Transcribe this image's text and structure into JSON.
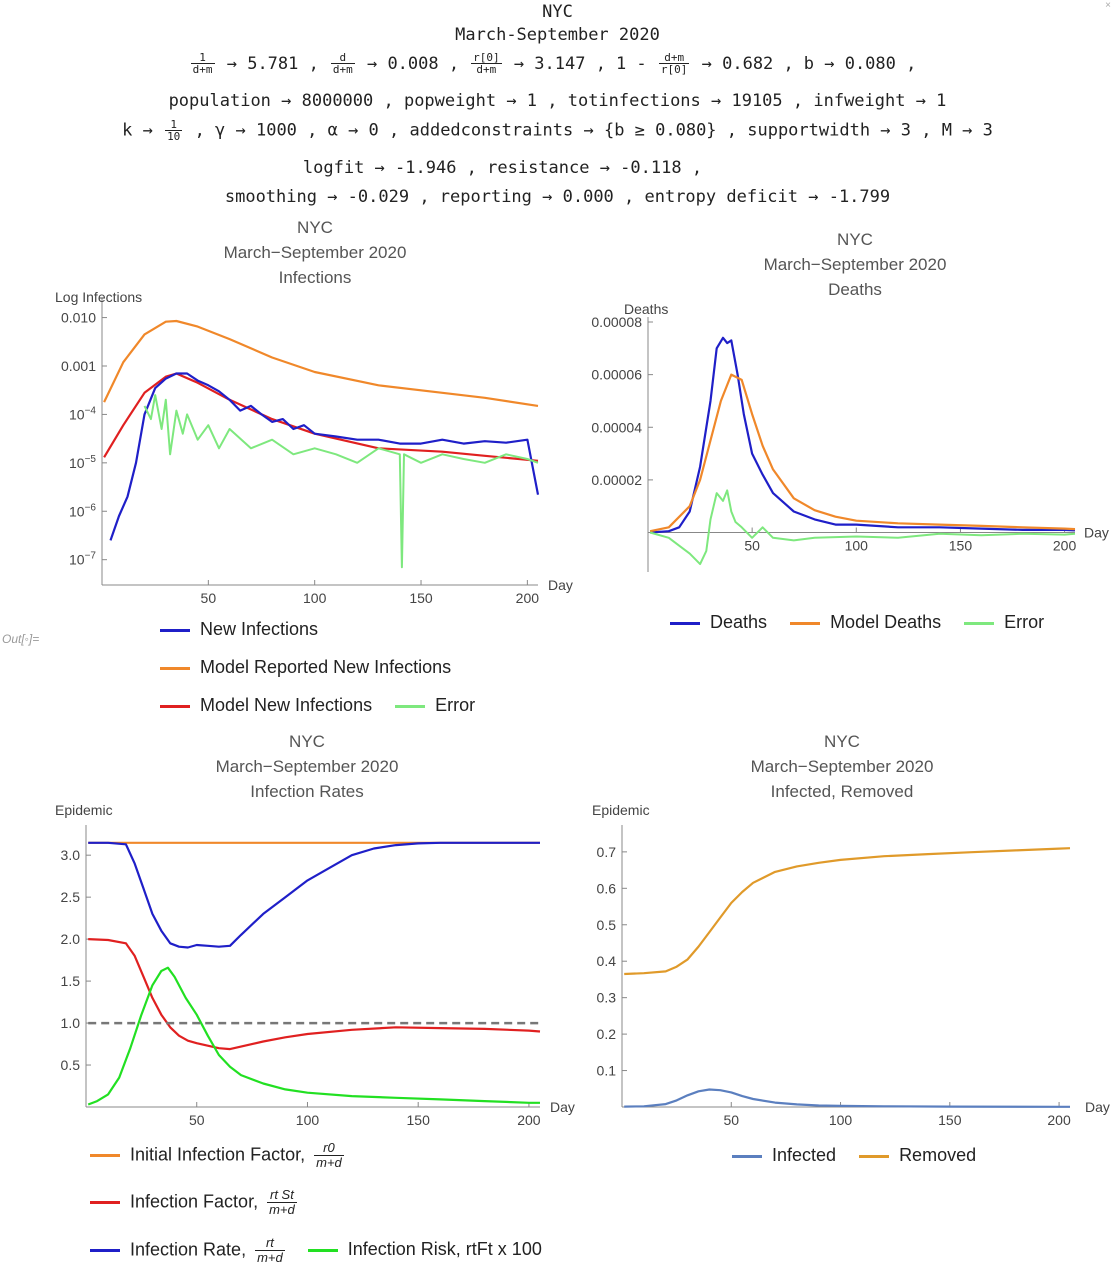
{
  "header": {
    "title": "NYC",
    "subtitle": "March-September 2020",
    "line1": [
      {
        "num": "1",
        "den": "d+m",
        "val": "→ 5.781 ,"
      },
      {
        "num": "d",
        "den": "d+m",
        "val": "→ 0.008 ,"
      },
      {
        "num": "r[0]",
        "den": "d+m",
        "val": "→ 3.147 ,"
      },
      {
        "pre": "1 -",
        "num": "d+m",
        "den": "r[0]",
        "val": "→ 0.682 ,"
      },
      {
        "pre": "b → 0.080 ,"
      }
    ],
    "line2": "population → 8000000 ,  popweight → 1 ,  totinfections → 19105 ,  infweight → 1",
    "line3_k": "k →",
    "line3_k_num": "1",
    "line3_k_den": "10",
    "line3_rest": ",  γ → 1000 ,  α → 0 ,  addedconstraints → {b ≥ 0.080} ,  supportwidth → 3 ,  M → 3",
    "line4": "logfit → -1.946 ,  resistance → -0.118 ,",
    "line5": "smoothing → -0.029 ,  reporting → 0.000 ,  entropy deficit → -1.799"
  },
  "out_label": "Out[◦]=",
  "panels": {
    "infections": {
      "title": [
        "NYC",
        "March−September 2020",
        "Infections"
      ],
      "legend": [
        "New Infections",
        "Model Reported New Infections",
        "Model New Infections",
        "Error"
      ]
    },
    "deaths": {
      "title": [
        "NYC",
        "March−September 2020",
        "Deaths"
      ],
      "legend": [
        "Deaths",
        "Model Deaths",
        "Error"
      ]
    },
    "rates": {
      "title": [
        "NYC",
        "March−September 2020",
        "Infection Rates"
      ],
      "legend": {
        "initial": "Initial Infection Factor,",
        "initial_num": "r0",
        "initial_den": "m+d",
        "factor": "Infection Factor,",
        "factor_num": "rt St",
        "factor_den": "m+d",
        "rate": "Infection Rate,",
        "rate_num": "rt",
        "rate_den": "m+d",
        "risk": "Infection Risk, rtFt x 100"
      }
    },
    "removed": {
      "title": [
        "NYC",
        "March−September 2020",
        "Infected, Removed"
      ],
      "legend": [
        "Infected",
        "Removed"
      ]
    }
  },
  "colors": {
    "blue": "#1f1fc8",
    "orange": "#f0882a",
    "red": "#e02020",
    "green": "#7ee87e",
    "brightgreen": "#22e022",
    "steel": "#5b7fbf",
    "gold": "#e09a2a",
    "dash": "#777777"
  },
  "chart_data": [
    {
      "type": "line",
      "name": "infections",
      "ylabel": "Log Infections",
      "xlabel": "Day",
      "yscale": "log",
      "ylim": [
        3e-08,
        0.02
      ],
      "xlim": [
        0,
        205
      ],
      "xticks": [
        "50",
        "100",
        "150",
        "200"
      ],
      "yticks": [
        "0.010",
        "0.001",
        "10^-4",
        "10^-5",
        "10^-6",
        "10^-7"
      ],
      "series": [
        {
          "name": "Model Reported New Infections",
          "x": [
            1,
            10,
            20,
            30,
            35,
            45,
            60,
            80,
            100,
            130,
            160,
            180,
            205
          ],
          "y": [
            0.00018,
            0.0012,
            0.0045,
            0.0082,
            0.0085,
            0.0065,
            0.0036,
            0.0015,
            0.00075,
            0.0004,
            0.00028,
            0.00022,
            0.00015
          ]
        },
        {
          "name": "Model New Infections",
          "x": [
            1,
            10,
            20,
            30,
            35,
            45,
            60,
            80,
            100,
            130,
            160,
            180,
            205
          ],
          "y": [
            1.3e-05,
            6e-05,
            0.00028,
            0.0006,
            0.0007,
            0.00045,
            0.0002,
            8e-05,
            4e-05,
            2e-05,
            1.7e-05,
            1.4e-05,
            1.1e-05
          ]
        },
        {
          "name": "New Infections",
          "x": [
            4,
            8,
            12,
            16,
            20,
            25,
            30,
            35,
            40,
            45,
            50,
            55,
            60,
            65,
            70,
            75,
            80,
            85,
            90,
            95,
            100,
            110,
            120,
            130,
            140,
            150,
            160,
            170,
            180,
            190,
            200,
            205
          ],
          "y": [
            2.5e-07,
            8e-07,
            2e-06,
            1e-05,
            0.0001,
            0.00035,
            0.00055,
            0.0007,
            0.0007,
            0.0005,
            0.0004,
            0.0003,
            0.0002,
            0.00012,
            0.00015,
            0.0001,
            7e-05,
            8e-05,
            5e-05,
            6e-05,
            4e-05,
            3.5e-05,
            3e-05,
            3e-05,
            2.5e-05,
            2.5e-05,
            3e-05,
            2.5e-05,
            2.8e-05,
            2.6e-05,
            3e-05,
            2.2e-06
          ]
        },
        {
          "name": "Error",
          "x": [
            20,
            23,
            25,
            28,
            30,
            32,
            35,
            38,
            40,
            45,
            50,
            55,
            60,
            70,
            80,
            90,
            100,
            110,
            120,
            130,
            140,
            141,
            142,
            150,
            160,
            170,
            180,
            190,
            200,
            205
          ],
          "y": [
            0.00015,
            8e-05,
            0.00025,
            5e-05,
            0.0002,
            1.5e-05,
            0.00012,
            4e-05,
            0.0001,
            3e-05,
            6e-05,
            2e-05,
            5e-05,
            2e-05,
            3e-05,
            1.5e-05,
            2e-05,
            1.5e-05,
            1e-05,
            2e-05,
            1.5e-05,
            7e-08,
            1.5e-05,
            1e-05,
            1.5e-05,
            1.2e-05,
            1e-05,
            1.5e-05,
            1.2e-05,
            1e-05
          ]
        }
      ]
    },
    {
      "type": "line",
      "name": "deaths",
      "ylabel": "Deaths",
      "xlabel": "Day",
      "ylim": [
        -1.5e-05,
        8e-05
      ],
      "xlim": [
        0,
        205
      ],
      "xticks": [
        "50",
        "100",
        "150",
        "200"
      ],
      "yticks": [
        "0.00008",
        "0.00006",
        "0.00004",
        "0.00002"
      ],
      "series": [
        {
          "name": "Deaths",
          "x": [
            1,
            10,
            15,
            20,
            25,
            30,
            33,
            36,
            38,
            40,
            43,
            46,
            50,
            55,
            60,
            70,
            80,
            90,
            100,
            120,
            140,
            160,
            180,
            200,
            205
          ],
          "y": [
            0,
            5e-07,
            2e-06,
            8e-06,
            2.5e-05,
            5e-05,
            7e-05,
            7.4e-05,
            7.2e-05,
            7.3e-05,
            6e-05,
            4.5e-05,
            3e-05,
            2.2e-05,
            1.5e-05,
            8e-06,
            5e-06,
            3e-06,
            3e-06,
            2e-06,
            2e-06,
            1.5e-06,
            1e-06,
            1e-06,
            8e-07
          ]
        },
        {
          "name": "Model Deaths",
          "x": [
            1,
            10,
            20,
            25,
            30,
            35,
            40,
            45,
            50,
            55,
            60,
            70,
            80,
            90,
            100,
            120,
            140,
            160,
            180,
            200,
            205
          ],
          "y": [
            5e-07,
            2e-06,
            1e-05,
            2e-05,
            3.5e-05,
            5e-05,
            6e-05,
            5.8e-05,
            4.5e-05,
            3.3e-05,
            2.4e-05,
            1.3e-05,
            8.5e-06,
            6e-06,
            4.5e-06,
            3.5e-06,
            3e-06,
            2.5e-06,
            2e-06,
            1.5e-06,
            1.3e-06
          ]
        },
        {
          "name": "Error",
          "x": [
            1,
            10,
            15,
            20,
            25,
            28,
            30,
            33,
            36,
            38,
            40,
            42,
            45,
            50,
            55,
            60,
            70,
            80,
            100,
            120,
            140,
            160,
            180,
            200,
            205
          ],
          "y": [
            0,
            -2e-06,
            -5e-06,
            -8e-06,
            -1.2e-05,
            -7e-06,
            5e-06,
            1.5e-05,
            1.2e-05,
            1.6e-05,
            8e-06,
            4e-06,
            2e-06,
            -2e-06,
            2e-06,
            -2e-06,
            -3e-06,
            -2e-06,
            -1.5e-06,
            -2e-06,
            -5e-07,
            -1e-06,
            -5e-07,
            -8e-07,
            -5e-07
          ]
        }
      ]
    },
    {
      "type": "line",
      "name": "rates",
      "ylabel": "Epidemic",
      "xlabel": "Day",
      "ylim": [
        0,
        3.3
      ],
      "xlim": [
        0,
        205
      ],
      "xticks": [
        "50",
        "100",
        "150",
        "200"
      ],
      "yticks": [
        "0.5",
        "1.0",
        "1.5",
        "2.0",
        "2.5",
        "3.0"
      ],
      "series": [
        {
          "name": "Initial Infection Factor",
          "x": [
            1,
            205
          ],
          "y": [
            3.147,
            3.147
          ]
        },
        {
          "name": "Infection Factor",
          "x": [
            1,
            10,
            18,
            22,
            26,
            30,
            34,
            38,
            42,
            46,
            50,
            55,
            60,
            65,
            70,
            80,
            90,
            100,
            120,
            140,
            160,
            180,
            200,
            205
          ],
          "y": [
            2.0,
            1.99,
            1.95,
            1.8,
            1.55,
            1.3,
            1.1,
            0.95,
            0.85,
            0.79,
            0.76,
            0.73,
            0.7,
            0.69,
            0.72,
            0.78,
            0.83,
            0.87,
            0.92,
            0.95,
            0.94,
            0.93,
            0.91,
            0.9
          ]
        },
        {
          "name": "Infection Rate",
          "x": [
            1,
            10,
            18,
            22,
            26,
            30,
            34,
            38,
            42,
            46,
            50,
            55,
            60,
            65,
            70,
            80,
            90,
            100,
            110,
            120,
            130,
            140,
            150,
            160,
            180,
            200,
            205
          ],
          "y": [
            3.147,
            3.147,
            3.13,
            2.9,
            2.6,
            2.3,
            2.1,
            1.95,
            1.91,
            1.9,
            1.93,
            1.92,
            1.91,
            1.92,
            2.05,
            2.3,
            2.5,
            2.7,
            2.85,
            3.0,
            3.08,
            3.12,
            3.14,
            3.147,
            3.147,
            3.147,
            3.147
          ]
        },
        {
          "name": "Infection Risk",
          "x": [
            1,
            5,
            10,
            15,
            20,
            25,
            30,
            34,
            37,
            40,
            45,
            50,
            55,
            60,
            65,
            70,
            80,
            90,
            100,
            120,
            140,
            160,
            180,
            200,
            205
          ],
          "y": [
            0.03,
            0.07,
            0.15,
            0.35,
            0.7,
            1.1,
            1.45,
            1.62,
            1.66,
            1.55,
            1.3,
            1.1,
            0.85,
            0.62,
            0.48,
            0.38,
            0.28,
            0.21,
            0.17,
            0.13,
            0.11,
            0.09,
            0.07,
            0.05,
            0.05
          ]
        },
        {
          "name": "threshold",
          "x": [
            1,
            205
          ],
          "y": [
            1.0,
            1.0
          ]
        }
      ]
    },
    {
      "type": "line",
      "name": "removed",
      "ylabel": "Epidemic",
      "xlabel": "Day",
      "ylim": [
        0,
        0.76
      ],
      "xlim": [
        0,
        205
      ],
      "xticks": [
        "50",
        "100",
        "150",
        "200"
      ],
      "yticks": [
        "0.1",
        "0.2",
        "0.3",
        "0.4",
        "0.5",
        "0.6",
        "0.7"
      ],
      "series": [
        {
          "name": "Infected",
          "x": [
            1,
            10,
            20,
            25,
            30,
            35,
            40,
            45,
            50,
            55,
            60,
            70,
            80,
            90,
            100,
            120,
            150,
            200,
            205
          ],
          "y": [
            0.001,
            0.002,
            0.008,
            0.018,
            0.032,
            0.043,
            0.048,
            0.046,
            0.04,
            0.03,
            0.022,
            0.012,
            0.007,
            0.004,
            0.003,
            0.002,
            0.001,
            0.0005,
            0.0005
          ]
        },
        {
          "name": "Removed",
          "x": [
            1,
            10,
            20,
            25,
            30,
            35,
            40,
            45,
            50,
            55,
            60,
            70,
            80,
            90,
            100,
            120,
            140,
            160,
            180,
            200,
            205
          ],
          "y": [
            0.365,
            0.367,
            0.372,
            0.385,
            0.405,
            0.44,
            0.48,
            0.52,
            0.56,
            0.59,
            0.615,
            0.645,
            0.66,
            0.67,
            0.678,
            0.688,
            0.694,
            0.699,
            0.704,
            0.709,
            0.71
          ]
        }
      ]
    }
  ]
}
